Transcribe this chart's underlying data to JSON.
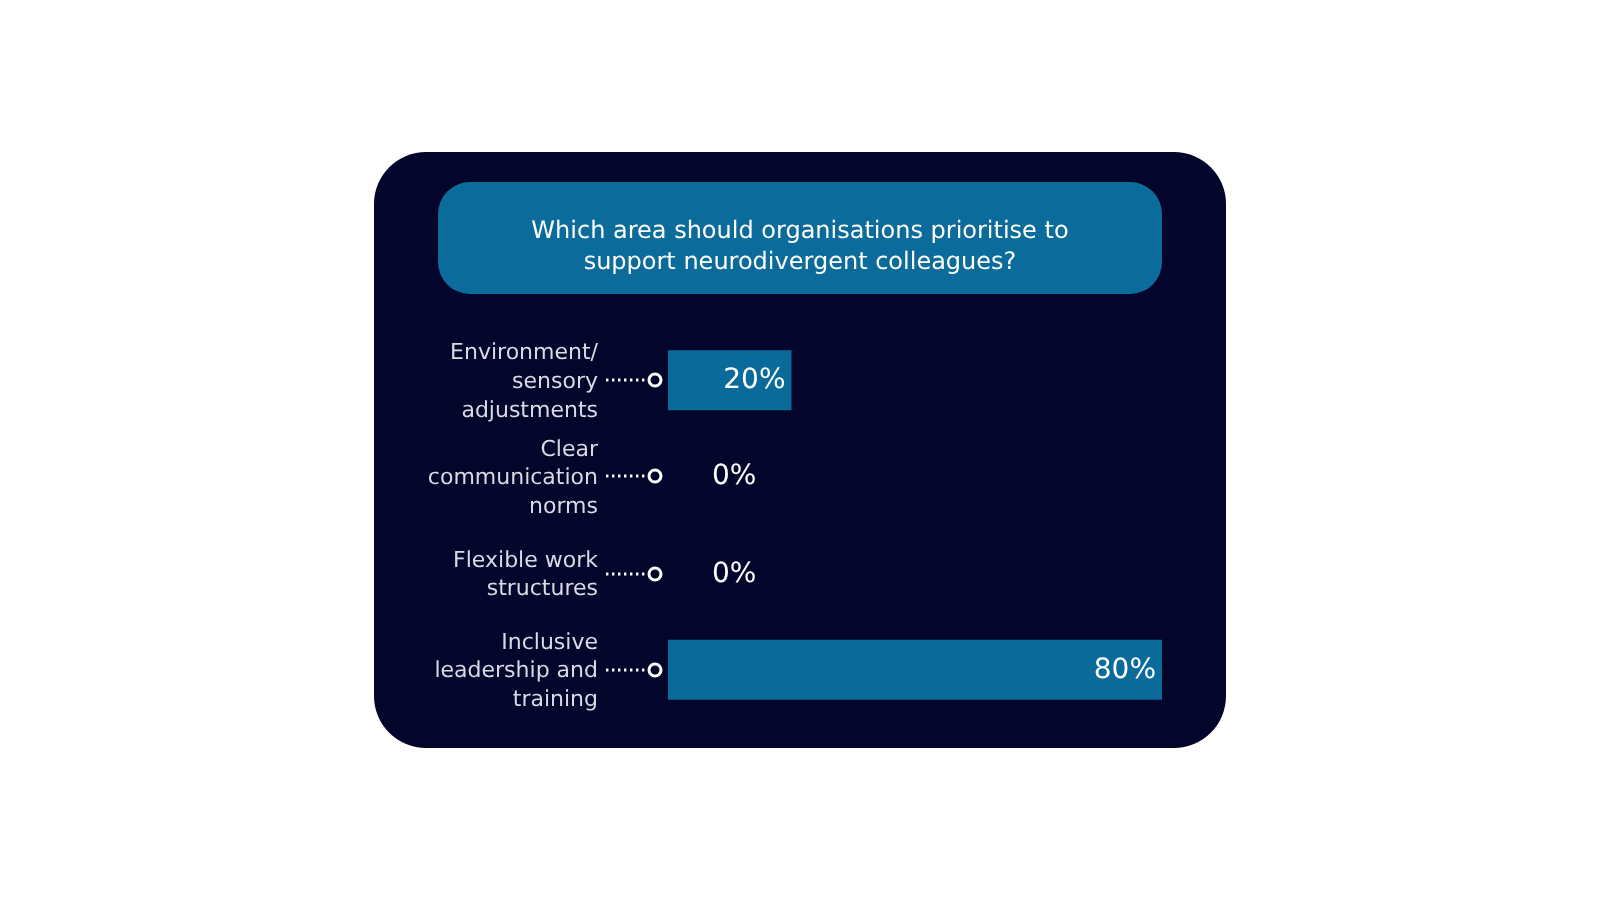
{
  "chart_data": {
    "type": "bar",
    "orientation": "horizontal",
    "title": "Which area should organisations prioritise to support neurodivergent colleagues?",
    "categories": [
      "Environment/ sensory adjustments",
      "Clear communication norms",
      "Flexible work structures",
      "Inclusive leadership and training"
    ],
    "values": [
      20,
      0,
      0,
      80
    ],
    "value_labels": [
      "20%",
      "0%",
      "0%",
      "80%"
    ],
    "color": "#0a6a99",
    "xlim": [
      0,
      80
    ],
    "tick_labels": "y"
  }
}
